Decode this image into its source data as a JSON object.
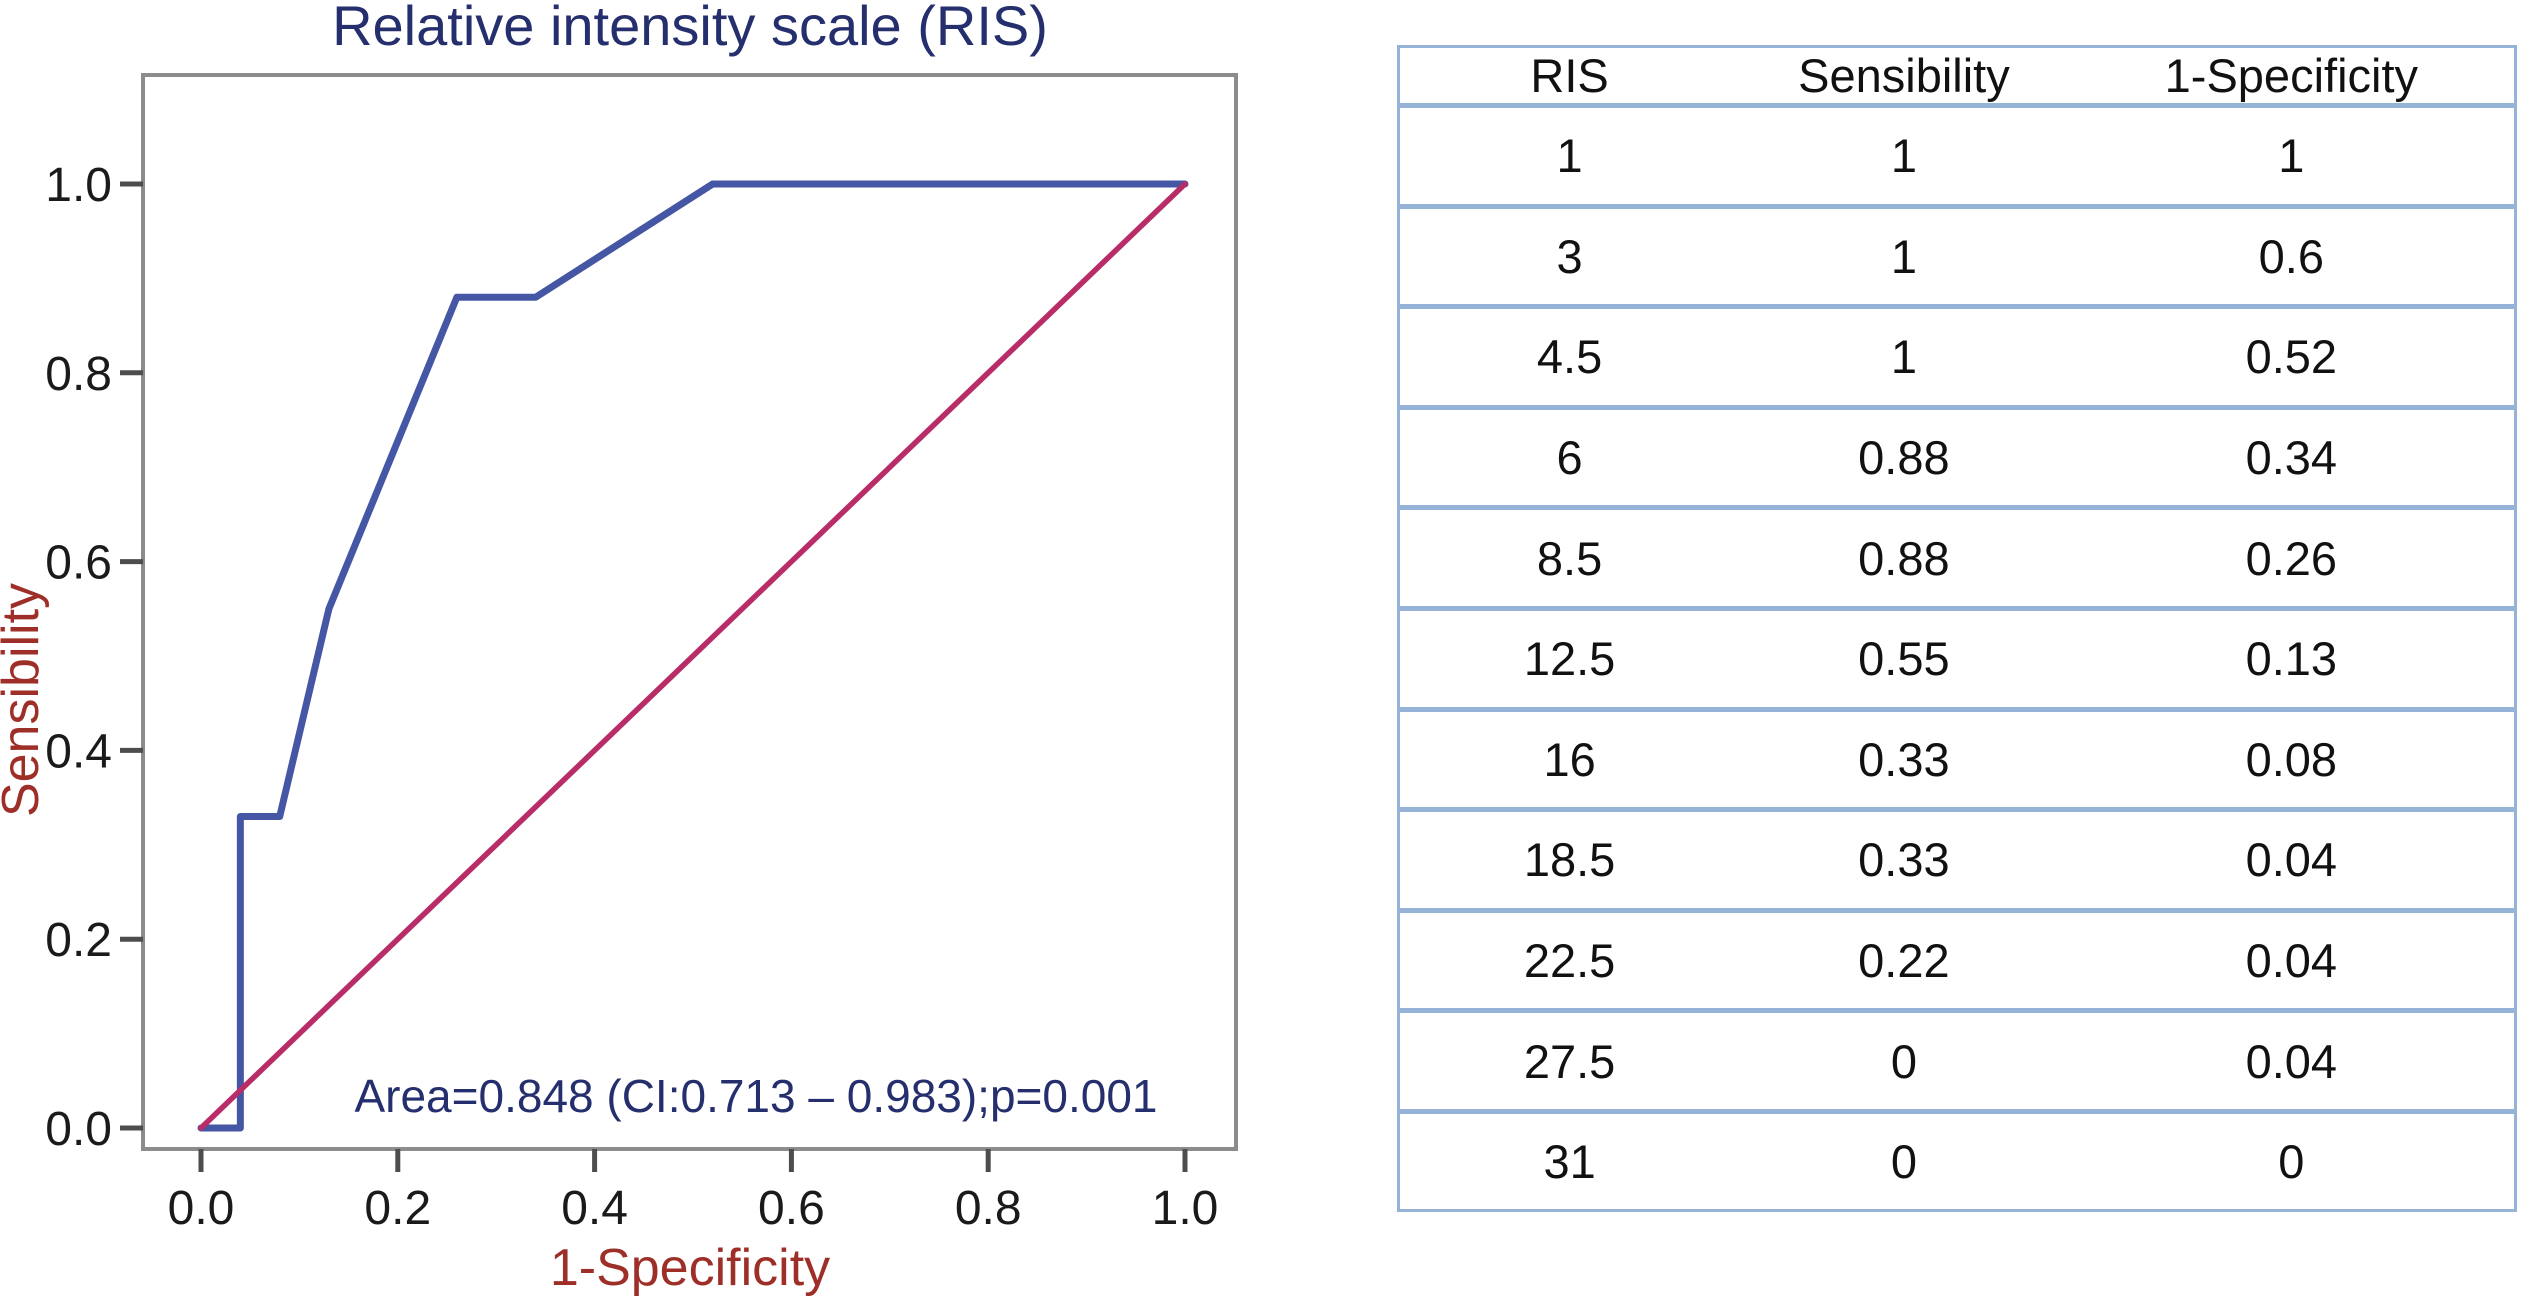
{
  "chart_data": {
    "type": "line",
    "title": "Relative intensity scale (RIS)",
    "xlabel": "1-Specificity",
    "ylabel": "Sensibility",
    "annotation": "Area=0.848 (CI:0.713 – 0.983);p=0.001",
    "auc": 0.848,
    "ci_low": 0.713,
    "ci_high": 0.983,
    "p_value": 0.001,
    "xlim": [
      0,
      1
    ],
    "ylim": [
      0,
      1
    ],
    "grid": false,
    "legend": "none",
    "x_tick_labels": [
      "0.0",
      "0.2",
      "0.4",
      "0.6",
      "0.8",
      "1.0"
    ],
    "y_tick_labels": [
      "0.0",
      "0.2",
      "0.4",
      "0.6",
      "0.8",
      "1.0"
    ],
    "x_ticks": [
      0.0,
      0.2,
      0.4,
      0.6,
      0.8,
      1.0
    ],
    "y_ticks": [
      0.0,
      0.2,
      0.4,
      0.6,
      0.8,
      1.0
    ],
    "series": [
      {
        "name": "ROC curve",
        "color": "#4556a4",
        "stroke_width": 7,
        "points": [
          [
            0,
            0
          ],
          [
            0.04,
            0
          ],
          [
            0.04,
            0.33
          ],
          [
            0.08,
            0.33
          ],
          [
            0.13,
            0.55
          ],
          [
            0.26,
            0.88
          ],
          [
            0.34,
            0.88
          ],
          [
            0.52,
            1
          ],
          [
            1,
            1
          ]
        ]
      },
      {
        "name": "Reference diagonal",
        "color": "#b82d68",
        "stroke_width": 5.5,
        "points": [
          [
            0,
            0
          ],
          [
            1,
            1
          ]
        ]
      }
    ],
    "colors": {
      "title": "#252f6d",
      "annotation": "#252f6d",
      "axis_label": "#9e2f28",
      "tick_label": "#1a1a1a",
      "frame": "#8c8c8c",
      "tick_mark": "#4d4d4d",
      "table_border": "#95b3d7"
    }
  },
  "table": {
    "headers": [
      "RIS",
      "Sensibility",
      "1-Specificity"
    ],
    "rows": [
      [
        "1",
        "1",
        "1"
      ],
      [
        "3",
        "1",
        "0.6"
      ],
      [
        "4.5",
        "1",
        "0.52"
      ],
      [
        "6",
        "0.88",
        "0.34"
      ],
      [
        "8.5",
        "0.88",
        "0.26"
      ],
      [
        "12.5",
        "0.55",
        "0.13"
      ],
      [
        "16",
        "0.33",
        "0.08"
      ],
      [
        "18.5",
        "0.33",
        "0.04"
      ],
      [
        "22.5",
        "0.22",
        "0.04"
      ],
      [
        "27.5",
        "0",
        "0.04"
      ],
      [
        "31",
        "0",
        "0"
      ]
    ]
  }
}
